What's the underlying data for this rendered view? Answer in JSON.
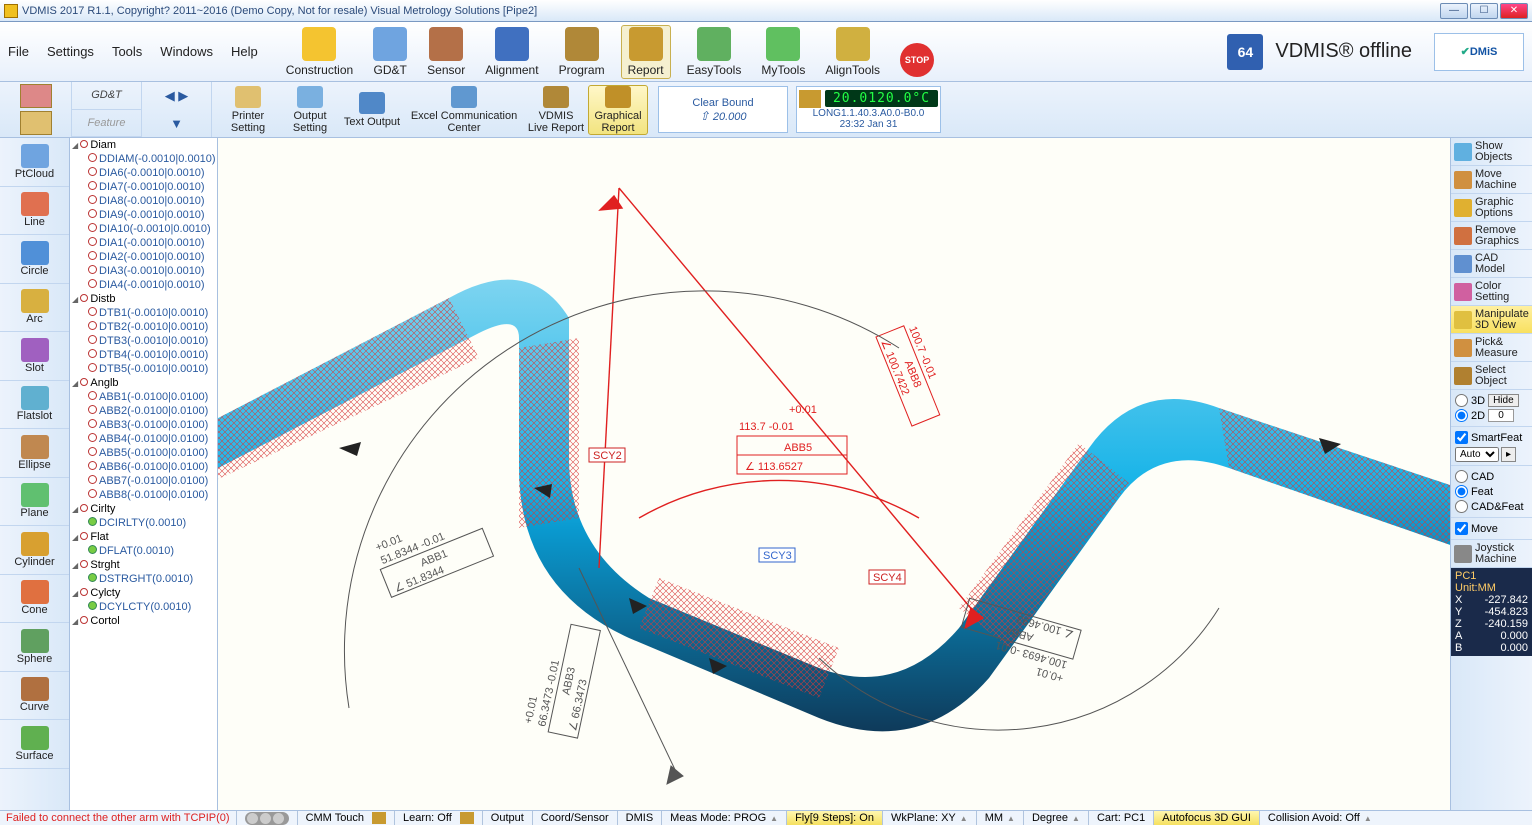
{
  "title": "VDMIS 2017 R1.1, Copyright? 2011~2016 (Demo Copy, Not for resale)  Visual Metrology Solutions  [Pipe2]",
  "menubar": {
    "items": [
      "File",
      "Settings",
      "Tools",
      "Windows",
      "Help"
    ]
  },
  "bigbuttons": [
    {
      "label": "Construction",
      "color": "#f4c430"
    },
    {
      "label": "GD&T",
      "color": "#6fa4e0"
    },
    {
      "label": "Sensor",
      "color": "#b47048"
    },
    {
      "label": "Alignment",
      "color": "#4070c0"
    },
    {
      "label": "Program",
      "color": "#b08838"
    },
    {
      "label": "Report",
      "color": "#c89a30",
      "report": true
    },
    {
      "label": "EasyTools",
      "color": "#60b060"
    },
    {
      "label": "MyTools",
      "color": "#60c060"
    },
    {
      "label": "AlignTools",
      "color": "#d0b040"
    },
    {
      "label": "",
      "color": "#e03030",
      "stop": true
    }
  ],
  "brand_text": "VDMIS® offline",
  "brand_logo_pre": "✔",
  "brand_logo": "DMiS",
  "sixtyfour": "64",
  "sidetabs": {
    "gdt": "GD&T",
    "feature": "Feature"
  },
  "ribbon": [
    {
      "label": "Printer Setting",
      "color": "#e0c070"
    },
    {
      "label": "Output Setting",
      "color": "#7ab0e0"
    },
    {
      "label": "Text Output",
      "color": "#5088c8"
    },
    {
      "label": "Excel Communication Center",
      "color": "#6098d0",
      "wide": true
    },
    {
      "label": "VDMIS Live Report",
      "color": "#b08838"
    },
    {
      "label": "Graphical Report",
      "color": "#c09028",
      "active": true
    }
  ],
  "clearbound": {
    "title": "Clear Bound",
    "value": "20.000"
  },
  "temp": {
    "value": "20.0120.0°C",
    "line1": "LONG1.1.40.3.A0.0-B0.0",
    "line2": "23:32 Jan 31"
  },
  "ltools": [
    {
      "label": "PtCloud",
      "color": "#6fa4e0"
    },
    {
      "label": "Line",
      "color": "#e07050"
    },
    {
      "label": "Circle",
      "color": "#5090d8"
    },
    {
      "label": "Arc",
      "color": "#d8b040"
    },
    {
      "label": "Slot",
      "color": "#a060c0"
    },
    {
      "label": "Flatslot",
      "color": "#60b0d0"
    },
    {
      "label": "Ellipse",
      "color": "#c08850"
    },
    {
      "label": "Plane",
      "color": "#60c070"
    },
    {
      "label": "Cylinder",
      "color": "#d8a030"
    },
    {
      "label": "Cone",
      "color": "#e07040"
    },
    {
      "label": "Sphere",
      "color": "#60a060"
    },
    {
      "label": "Curve",
      "color": "#b07040"
    },
    {
      "label": "Surface",
      "color": "#60b050"
    }
  ],
  "tree": [
    {
      "cat": "Diam"
    },
    {
      "sub": "DDIAM(-0.0010|0.0010)"
    },
    {
      "sub": "DIA6(-0.0010|0.0010)"
    },
    {
      "sub": "DIA7(-0.0010|0.0010)"
    },
    {
      "sub": "DIA8(-0.0010|0.0010)"
    },
    {
      "sub": "DIA9(-0.0010|0.0010)"
    },
    {
      "sub": "DIA10(-0.0010|0.0010)"
    },
    {
      "sub": "DIA1(-0.0010|0.0010)"
    },
    {
      "sub": "DIA2(-0.0010|0.0010)"
    },
    {
      "sub": "DIA3(-0.0010|0.0010)"
    },
    {
      "sub": "DIA4(-0.0010|0.0010)"
    },
    {
      "cat": "Distb"
    },
    {
      "sub": "DTB1(-0.0010|0.0010)"
    },
    {
      "sub": "DTB2(-0.0010|0.0010)"
    },
    {
      "sub": "DTB3(-0.0010|0.0010)"
    },
    {
      "sub": "DTB4(-0.0010|0.0010)"
    },
    {
      "sub": "DTB5(-0.0010|0.0010)"
    },
    {
      "cat": "Anglb"
    },
    {
      "sub": "ABB1(-0.0100|0.0100)"
    },
    {
      "sub": "ABB2(-0.0100|0.0100)"
    },
    {
      "sub": "ABB3(-0.0100|0.0100)"
    },
    {
      "sub": "ABB4(-0.0100|0.0100)"
    },
    {
      "sub": "ABB5(-0.0100|0.0100)"
    },
    {
      "sub": "ABB6(-0.0100|0.0100)"
    },
    {
      "sub": "ABB7(-0.0100|0.0100)"
    },
    {
      "sub": "ABB8(-0.0100|0.0100)"
    },
    {
      "cat": "Cirlty"
    },
    {
      "sub": "DCIRLTY(0.0010)",
      "g": true
    },
    {
      "cat": "Flat"
    },
    {
      "sub": "DFLAT(0.0010)",
      "g": true
    },
    {
      "cat": "Strght"
    },
    {
      "sub": "DSTRGHT(0.0010)",
      "g": true
    },
    {
      "cat": "Cylcty"
    },
    {
      "sub": "DCYLCTY(0.0010)",
      "g": true
    },
    {
      "cat": "Cortol"
    }
  ],
  "rpanel": [
    {
      "label": "Show Objects",
      "color": "#60b0e0"
    },
    {
      "label": "Move Machine",
      "color": "#d09040"
    },
    {
      "label": "Graphic Options",
      "color": "#e0b030"
    },
    {
      "label": "Remove Graphics",
      "color": "#d07040"
    },
    {
      "label": "CAD Model",
      "color": "#6090d0"
    },
    {
      "label": "Color Setting",
      "color": "#d060a0"
    },
    {
      "label": "Manipulate 3D View",
      "color": "#e0c040",
      "hl": true
    },
    {
      "label": "Pick& Measure",
      "color": "#d09040"
    },
    {
      "label": "Select Object",
      "color": "#b08030"
    }
  ],
  "viewopts": {
    "d3": "3D",
    "hide": "Hide",
    "d2": "2D",
    "d2v": "0",
    "smart": "SmartFeat",
    "auto": "Auto",
    "cad": "CAD",
    "feat": "Feat",
    "cadfeat": "CAD&Feat",
    "move": "Move",
    "joy": "Joystick Machine"
  },
  "coords": {
    "head": "PC1",
    "unit": "Unit:MM",
    "X": "-227.842",
    "Y": "-454.823",
    "Z": "-240.159",
    "A": "0.000",
    "B": "0.000"
  },
  "canvas": {
    "bg": "#fefef8",
    "pipe_fill": "#2bb8e8",
    "pipe_dark": "#1a5a8a",
    "mesh_stroke": "#d83838",
    "callout_red": "#e02020",
    "callout_dark": "#555",
    "labels": {
      "scy2": "SCY2",
      "scy3": "SCY3",
      "scy4": "SCY4",
      "abb5_a": "+0.01",
      "abb5_b": "113.7 -0.01",
      "abb5_c": "ABB5",
      "abb5_d": "∠ 113.6527",
      "top_a": "100.7 -0.01",
      "top_b": "ABB8",
      "top_c": "∠ 100.7422",
      "abb1_a": "+0.01",
      "abb1_b": "51.8344 -0.01",
      "abb1_c": "ABB1",
      "abb1_d": "∠ 51.8344",
      "abb3_a": "+0.01",
      "abb3_b": "66.3473 -0.01",
      "abb3_c": "ABB3",
      "abb3_d": "∠ 66.3473",
      "abb4_a": "+0.01",
      "abb4_b": "100.4693 -0.01",
      "abb4_c": "ABB4",
      "abb4_d": "∠ 100.4693"
    }
  },
  "status": {
    "err": "Failed to connect the other arm with TCPIP(0)",
    "segs": [
      {
        "t": "CMM Touch",
        "ic": true
      },
      {
        "t": "Learn: Off",
        "ic": true
      },
      {
        "t": "Output"
      },
      {
        "t": "Coord/Sensor"
      },
      {
        "t": "DMIS"
      },
      {
        "t": "Meas Mode: PROG",
        "a": true
      },
      {
        "t": "Fly[9 Steps]: On",
        "y": true
      },
      {
        "t": "WkPlane: XY",
        "a": true
      },
      {
        "t": "MM",
        "a": true
      },
      {
        "t": "Degree",
        "a": true
      },
      {
        "t": "Cart: PC1"
      },
      {
        "t": "Autofocus 3D GUI",
        "y": true
      },
      {
        "t": "Collision Avoid: Off",
        "a": true
      }
    ]
  }
}
